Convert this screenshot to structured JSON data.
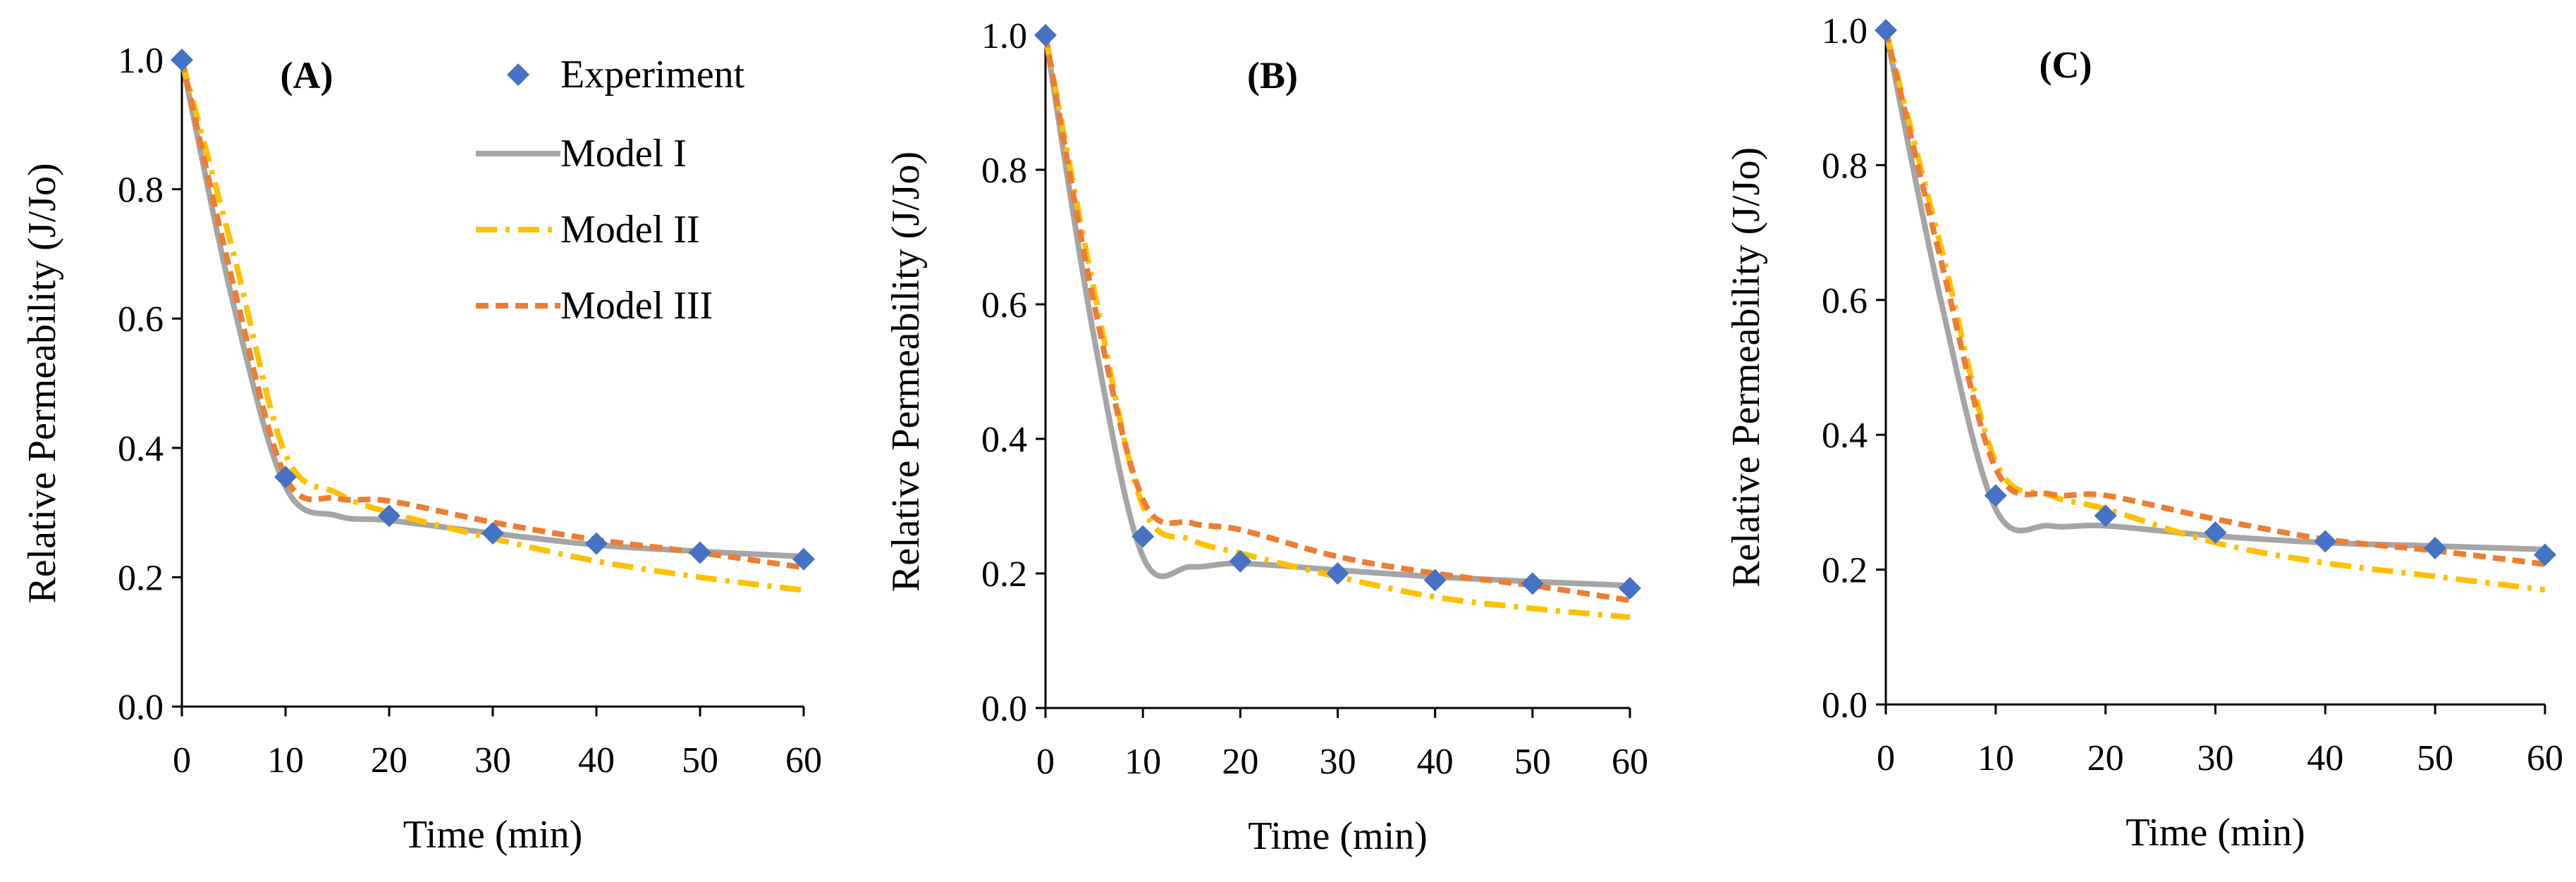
{
  "figure": {
    "legend": {
      "placement": "top-right of panel A",
      "entries": [
        {
          "key": "experiment",
          "label": "Experiment"
        },
        {
          "key": "model1",
          "label": "Model I"
        },
        {
          "key": "model2",
          "label": "Model II"
        },
        {
          "key": "model3",
          "label": "Model III"
        }
      ]
    },
    "styles": {
      "experiment": {
        "color": "#4472C4",
        "marker": "diamond"
      },
      "model1": {
        "color": "#A5A5A5",
        "dash": "solid"
      },
      "model2": {
        "color": "#FFC000",
        "dash": "dash-dot"
      },
      "model3": {
        "color": "#ED7D31",
        "dash": "dashed"
      }
    }
  },
  "chart_data": [
    {
      "type": "line",
      "title": "(A)",
      "xlabel": "Time (min)",
      "ylabel": "Relative Permeability (J/Jo)",
      "xlim": [
        0,
        60
      ],
      "ylim": [
        0,
        1.0
      ],
      "xticks": [
        0,
        10,
        20,
        30,
        40,
        50,
        60
      ],
      "yticks": [
        "0.0",
        "0.2",
        "0.4",
        "0.6",
        "0.8",
        "1.0"
      ],
      "grid": false,
      "series": [
        {
          "name": "Experiment",
          "key": "experiment",
          "x": [
            0,
            10,
            20,
            30,
            40,
            50,
            60
          ],
          "values": [
            1.0,
            0.355,
            0.295,
            0.268,
            0.252,
            0.238,
            0.228
          ]
        },
        {
          "name": "Model I",
          "key": "model1",
          "x": [
            0,
            5,
            10,
            15,
            20,
            30,
            40,
            50,
            60
          ],
          "values": [
            1.0,
            0.62,
            0.34,
            0.295,
            0.288,
            0.268,
            0.25,
            0.24,
            0.232
          ]
        },
        {
          "name": "Model II",
          "key": "model2",
          "x": [
            0,
            5,
            10,
            15,
            20,
            30,
            40,
            50,
            60
          ],
          "values": [
            1.0,
            0.7,
            0.39,
            0.33,
            0.3,
            0.26,
            0.225,
            0.2,
            0.18
          ]
        },
        {
          "name": "Model III",
          "key": "model3",
          "x": [
            0,
            5,
            10,
            15,
            20,
            30,
            40,
            50,
            60
          ],
          "values": [
            1.0,
            0.65,
            0.355,
            0.322,
            0.318,
            0.285,
            0.258,
            0.238,
            0.215
          ]
        }
      ]
    },
    {
      "type": "line",
      "title": "(B)",
      "xlabel": "Time (min)",
      "ylabel": "Relative Permeability (J/Jo)",
      "xlim": [
        0,
        60
      ],
      "ylim": [
        0,
        1.0
      ],
      "xticks": [
        0,
        10,
        20,
        30,
        40,
        50,
        60
      ],
      "yticks": [
        "0.0",
        "0.2",
        "0.4",
        "0.6",
        "0.8",
        "1.0"
      ],
      "grid": false,
      "series": [
        {
          "name": "Experiment",
          "key": "experiment",
          "x": [
            0,
            10,
            20,
            30,
            40,
            50,
            60
          ],
          "values": [
            1.0,
            0.255,
            0.218,
            0.2,
            0.19,
            0.185,
            0.178
          ]
        },
        {
          "name": "Model I",
          "key": "model1",
          "x": [
            0,
            5,
            10,
            15,
            20,
            30,
            40,
            50,
            60
          ],
          "values": [
            1.0,
            0.55,
            0.225,
            0.21,
            0.215,
            0.205,
            0.195,
            0.188,
            0.182
          ]
        },
        {
          "name": "Model II",
          "key": "model2",
          "x": [
            0,
            5,
            10,
            15,
            20,
            30,
            40,
            50,
            60
          ],
          "values": [
            1.0,
            0.62,
            0.3,
            0.25,
            0.23,
            0.195,
            0.165,
            0.148,
            0.135
          ]
        },
        {
          "name": "Model III",
          "key": "model3",
          "x": [
            0,
            5,
            10,
            15,
            20,
            30,
            40,
            50,
            60
          ],
          "values": [
            1.0,
            0.6,
            0.31,
            0.275,
            0.265,
            0.225,
            0.2,
            0.182,
            0.16
          ]
        }
      ]
    },
    {
      "type": "line",
      "title": "(C)",
      "xlabel": "Time (min)",
      "ylabel": "Relative Permeability (J/Jo)",
      "xlim": [
        0,
        60
      ],
      "ylim": [
        0,
        1.0
      ],
      "xticks": [
        0,
        10,
        20,
        30,
        40,
        50,
        60
      ],
      "yticks": [
        "0.0",
        "0.2",
        "0.4",
        "0.6",
        "0.8",
        "1.0"
      ],
      "grid": false,
      "series": [
        {
          "name": "Experiment",
          "key": "experiment",
          "x": [
            0,
            10,
            20,
            30,
            40,
            50,
            60
          ],
          "values": [
            1.0,
            0.31,
            0.28,
            0.255,
            0.242,
            0.232,
            0.222
          ]
        },
        {
          "name": "Model I",
          "key": "model1",
          "x": [
            0,
            5,
            10,
            15,
            20,
            30,
            40,
            50,
            60
          ],
          "values": [
            1.0,
            0.6,
            0.29,
            0.265,
            0.265,
            0.25,
            0.24,
            0.235,
            0.23
          ]
        },
        {
          "name": "Model II",
          "key": "model2",
          "x": [
            0,
            5,
            10,
            15,
            20,
            30,
            40,
            50,
            60
          ],
          "values": [
            1.0,
            0.68,
            0.36,
            0.31,
            0.29,
            0.24,
            0.21,
            0.19,
            0.17
          ]
        },
        {
          "name": "Model III",
          "key": "model3",
          "x": [
            0,
            5,
            10,
            15,
            20,
            30,
            40,
            50,
            60
          ],
          "values": [
            1.0,
            0.66,
            0.35,
            0.312,
            0.31,
            0.275,
            0.245,
            0.228,
            0.208
          ]
        }
      ]
    }
  ]
}
